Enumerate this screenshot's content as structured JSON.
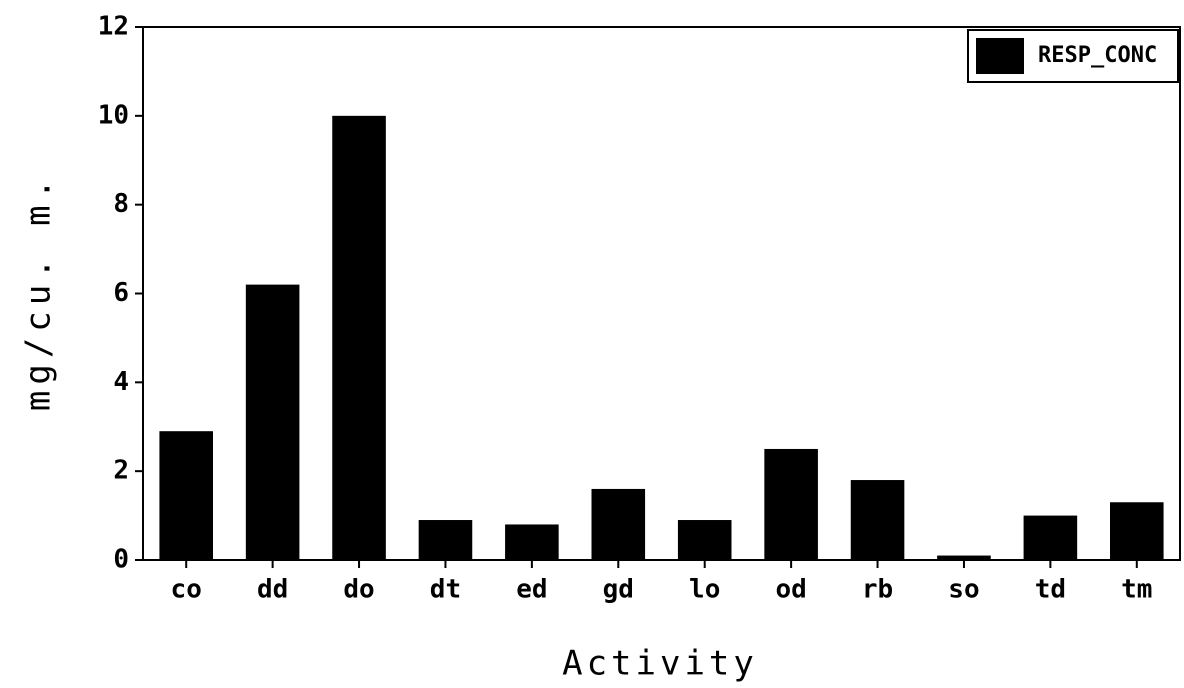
{
  "chart_data": {
    "type": "bar",
    "xlabel": "Activity",
    "ylabel": "mg/cu. m.",
    "categories": [
      "co",
      "dd",
      "do",
      "dt",
      "ed",
      "gd",
      "lo",
      "od",
      "rb",
      "so",
      "td",
      "tm"
    ],
    "series": [
      {
        "name": "RESP_CONC",
        "color": "#000000",
        "values": [
          2.9,
          6.2,
          10.0,
          0.9,
          0.8,
          1.6,
          0.9,
          2.5,
          1.8,
          0.1,
          1.0,
          1.3
        ]
      }
    ],
    "ylim": [
      0,
      12
    ],
    "yticks": [
      0,
      2,
      4,
      6,
      8,
      10,
      12
    ],
    "legend": "top-right"
  }
}
